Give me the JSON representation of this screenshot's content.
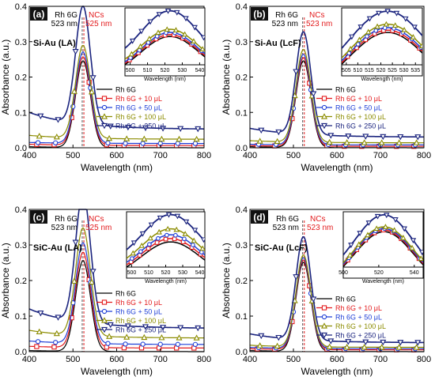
{
  "figure": {
    "xlabel": "Wavelength (nm)",
    "ylabel": "Absorbance (a.u.)",
    "inset_xlabel": "Wavelength (nm)",
    "ref_left_label": "Rh 6G",
    "ref_right_label": "NCs"
  },
  "colors": {
    "rh6g": "#000000",
    "v10": "#e31a1c",
    "v50": "#1f3fd6",
    "v100": "#8c8c00",
    "v250": "#1a237e",
    "reference_line": "#e31a1c",
    "text_red": "#e31a1c"
  },
  "legend": [
    {
      "name": "Rh 6G",
      "color_key": "rh6g",
      "marker": "none"
    },
    {
      "name": "Rh 6G +  10 μL",
      "color_key": "v10",
      "marker": "square"
    },
    {
      "name": "Rh 6G +  50 μL",
      "color_key": "v50",
      "marker": "circle"
    },
    {
      "name": "Rh 6G + 100 μL",
      "color_key": "v100",
      "marker": "triangle-up"
    },
    {
      "name": "Rh 6G + 250 μL",
      "color_key": "v250",
      "marker": "triangle-down"
    }
  ],
  "chart_data": [
    {
      "type": "line",
      "panel_letter": "(a)",
      "sample_label": "Si-Au (LA)",
      "rh6g_peak_label": "523 nm",
      "nc_peak_label": "525 nm",
      "xlim": [
        400,
        800
      ],
      "ylim": [
        0,
        0.4
      ],
      "xticks": [
        400,
        500,
        600,
        700,
        800
      ],
      "yticks": [
        0.0,
        0.1,
        0.2,
        0.3,
        0.4
      ],
      "inset_xlim": [
        497,
        543
      ],
      "inset_xticks": [
        500,
        510,
        520,
        530,
        540
      ],
      "series": [
        {
          "name": "Rh 6G",
          "peak": 0.245,
          "base": 0.003,
          "tail": 0.0,
          "marker": "none"
        },
        {
          "name": "Rh 6G +  10 μL",
          "peak": 0.25,
          "base": 0.01,
          "tail": 0.006,
          "marker": "square"
        },
        {
          "name": "Rh 6G +  50 μL",
          "peak": 0.258,
          "base": 0.015,
          "tail": 0.012,
          "marker": "circle"
        },
        {
          "name": "Rh 6G + 100 μL",
          "peak": 0.262,
          "base": 0.035,
          "tail": 0.024,
          "marker": "triangle-up"
        },
        {
          "name": "Rh 6G + 250 μL",
          "peak": 0.333,
          "base": 0.1,
          "tail": 0.052,
          "marker": "triangle-down"
        }
      ]
    },
    {
      "type": "line",
      "panel_letter": "(b)",
      "sample_label": "Si-Au (LcF)",
      "rh6g_peak_label": "523 nm",
      "nc_peak_label": "523 nm",
      "xlim": [
        400,
        800
      ],
      "ylim": [
        0,
        0.4
      ],
      "xticks": [
        400,
        500,
        600,
        700,
        800
      ],
      "yticks": [
        0.0,
        0.1,
        0.2,
        0.3,
        0.4
      ],
      "inset_xlim": [
        503,
        538
      ],
      "inset_xticks": [
        505,
        510,
        515,
        520,
        525,
        530,
        535
      ],
      "series": [
        {
          "name": "Rh 6G",
          "peak": 0.245,
          "base": 0.003,
          "tail": 0.0,
          "marker": "none"
        },
        {
          "name": "Rh 6G +  10 μL",
          "peak": 0.25,
          "base": 0.006,
          "tail": 0.004,
          "marker": "square"
        },
        {
          "name": "Rh 6G +  50 μL",
          "peak": 0.256,
          "base": 0.01,
          "tail": 0.008,
          "marker": "circle"
        },
        {
          "name": "Rh 6G + 100 μL",
          "peak": 0.262,
          "base": 0.02,
          "tail": 0.014,
          "marker": "triangle-up"
        },
        {
          "name": "Rh 6G + 250 μL",
          "peak": 0.29,
          "base": 0.055,
          "tail": 0.03,
          "marker": "triangle-down"
        }
      ]
    },
    {
      "type": "line",
      "panel_letter": "(c)",
      "sample_label": "SiC-Au (LA)",
      "rh6g_peak_label": "523 nm",
      "nc_peak_label": "525 nm",
      "xlim": [
        400,
        800
      ],
      "ylim": [
        0,
        0.4
      ],
      "xticks": [
        400,
        500,
        600,
        700,
        800
      ],
      "yticks": [
        0.0,
        0.1,
        0.2,
        0.3,
        0.4
      ],
      "inset_xlim": [
        497,
        543
      ],
      "inset_xticks": [
        500,
        510,
        520,
        530,
        540
      ],
      "series": [
        {
          "name": "Rh 6G",
          "peak": 0.255,
          "base": 0.003,
          "tail": 0.0,
          "marker": "none"
        },
        {
          "name": "Rh 6G +  10 μL",
          "peak": 0.268,
          "base": 0.015,
          "tail": 0.01,
          "marker": "square"
        },
        {
          "name": "Rh 6G +  50 μL",
          "peak": 0.283,
          "base": 0.03,
          "tail": 0.02,
          "marker": "circle"
        },
        {
          "name": "Rh 6G + 100 μL",
          "peak": 0.303,
          "base": 0.06,
          "tail": 0.038,
          "marker": "triangle-up"
        },
        {
          "name": "Rh 6G + 250 μL",
          "peak": 0.365,
          "base": 0.12,
          "tail": 0.065,
          "marker": "triangle-down"
        }
      ]
    },
    {
      "type": "line",
      "panel_letter": "(d)",
      "sample_label": "SiC-Au (LcF)",
      "rh6g_peak_label": "523 nm",
      "nc_peak_label": "523 nm",
      "xlim": [
        400,
        800
      ],
      "ylim": [
        0,
        0.4
      ],
      "xticks": [
        400,
        500,
        600,
        700,
        800
      ],
      "yticks": [
        0.0,
        0.1,
        0.2,
        0.3,
        0.4
      ],
      "inset_xlim": [
        500,
        545
      ],
      "inset_xticks": [
        500,
        520,
        540
      ],
      "series": [
        {
          "name": "Rh 6G",
          "peak": 0.25,
          "base": 0.003,
          "tail": 0.0,
          "marker": "none"
        },
        {
          "name": "Rh 6G +  10 μL",
          "peak": 0.252,
          "base": 0.008,
          "tail": 0.005,
          "marker": "square"
        },
        {
          "name": "Rh 6G +  50 μL",
          "peak": 0.255,
          "base": 0.012,
          "tail": 0.008,
          "marker": "circle"
        },
        {
          "name": "Rh 6G + 100 μL",
          "peak": 0.258,
          "base": 0.018,
          "tail": 0.012,
          "marker": "triangle-up"
        },
        {
          "name": "Rh 6G + 250 μL",
          "peak": 0.29,
          "base": 0.05,
          "tail": 0.025,
          "marker": "triangle-down"
        }
      ]
    }
  ]
}
